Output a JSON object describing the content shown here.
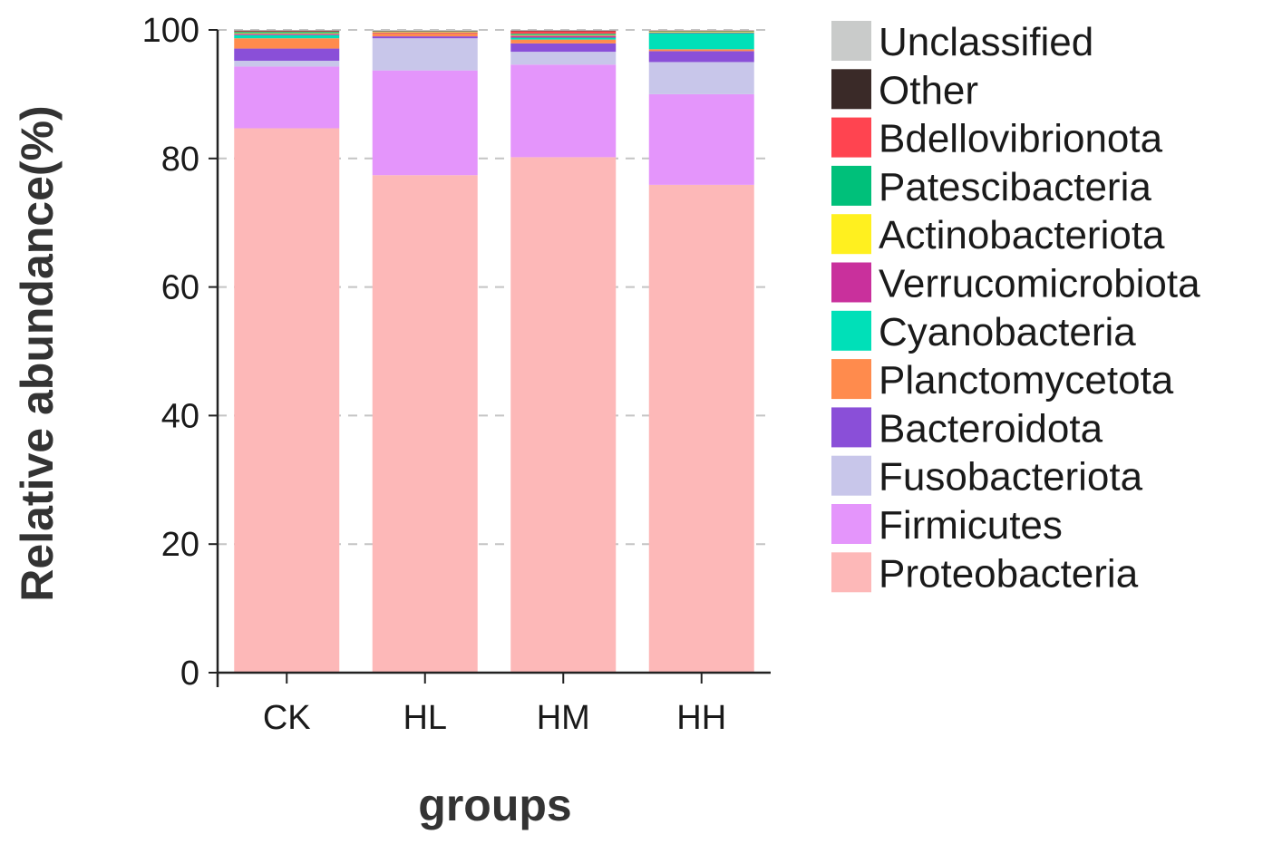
{
  "chart_data": {
    "type": "bar",
    "stacked": true,
    "title": "",
    "xlabel": "groups",
    "ylabel": "Relative abundance(%)",
    "ylim": [
      0,
      100
    ],
    "yticks": [
      0,
      20,
      40,
      60,
      80,
      100
    ],
    "grid": "horizontal-dashed",
    "legend_position": "right",
    "categories": [
      "CK",
      "HL",
      "HM",
      "HH"
    ],
    "series": [
      {
        "name": "Proteobacteria",
        "color": "#FDB8B8",
        "values": [
          84.7,
          77.4,
          80.2,
          75.9
        ]
      },
      {
        "name": "Firmicutes",
        "color": "#E495FB",
        "values": [
          9.6,
          16.3,
          14.4,
          14.1
        ]
      },
      {
        "name": "Fusobacteriota",
        "color": "#C8C6EA",
        "values": [
          0.9,
          5.0,
          2.0,
          5.0
        ]
      },
      {
        "name": "Bacteroidota",
        "color": "#8A4FD8",
        "values": [
          1.9,
          0.3,
          1.3,
          1.7
        ]
      },
      {
        "name": "Planctomycetota",
        "color": "#FF8B4D",
        "values": [
          1.6,
          0.5,
          0.6,
          0.3
        ]
      },
      {
        "name": "Cyanobacteria",
        "color": "#00E0B8",
        "values": [
          0.5,
          0.0,
          0.3,
          2.5
        ]
      },
      {
        "name": "Verrucomicrobiota",
        "color": "#C9309C",
        "values": [
          0.2,
          0.1,
          0.3,
          0.1
        ]
      },
      {
        "name": "Actinobacteriota",
        "color": "#FFF01F",
        "values": [
          0.1,
          0.1,
          0.1,
          0.1
        ]
      },
      {
        "name": "Patescibacteria",
        "color": "#00C07A",
        "values": [
          0.2,
          0.0,
          0.2,
          0.1
        ]
      },
      {
        "name": "Bdellovibrionota",
        "color": "#FF4450",
        "values": [
          0.1,
          0.0,
          0.4,
          0.1
        ]
      },
      {
        "name": "Other",
        "color": "#3A2A28",
        "values": [
          0.1,
          0.1,
          0.1,
          0.0
        ]
      },
      {
        "name": "Unclassified",
        "color": "#C9CBCA",
        "values": [
          0.1,
          0.2,
          0.1,
          0.1
        ]
      }
    ]
  }
}
